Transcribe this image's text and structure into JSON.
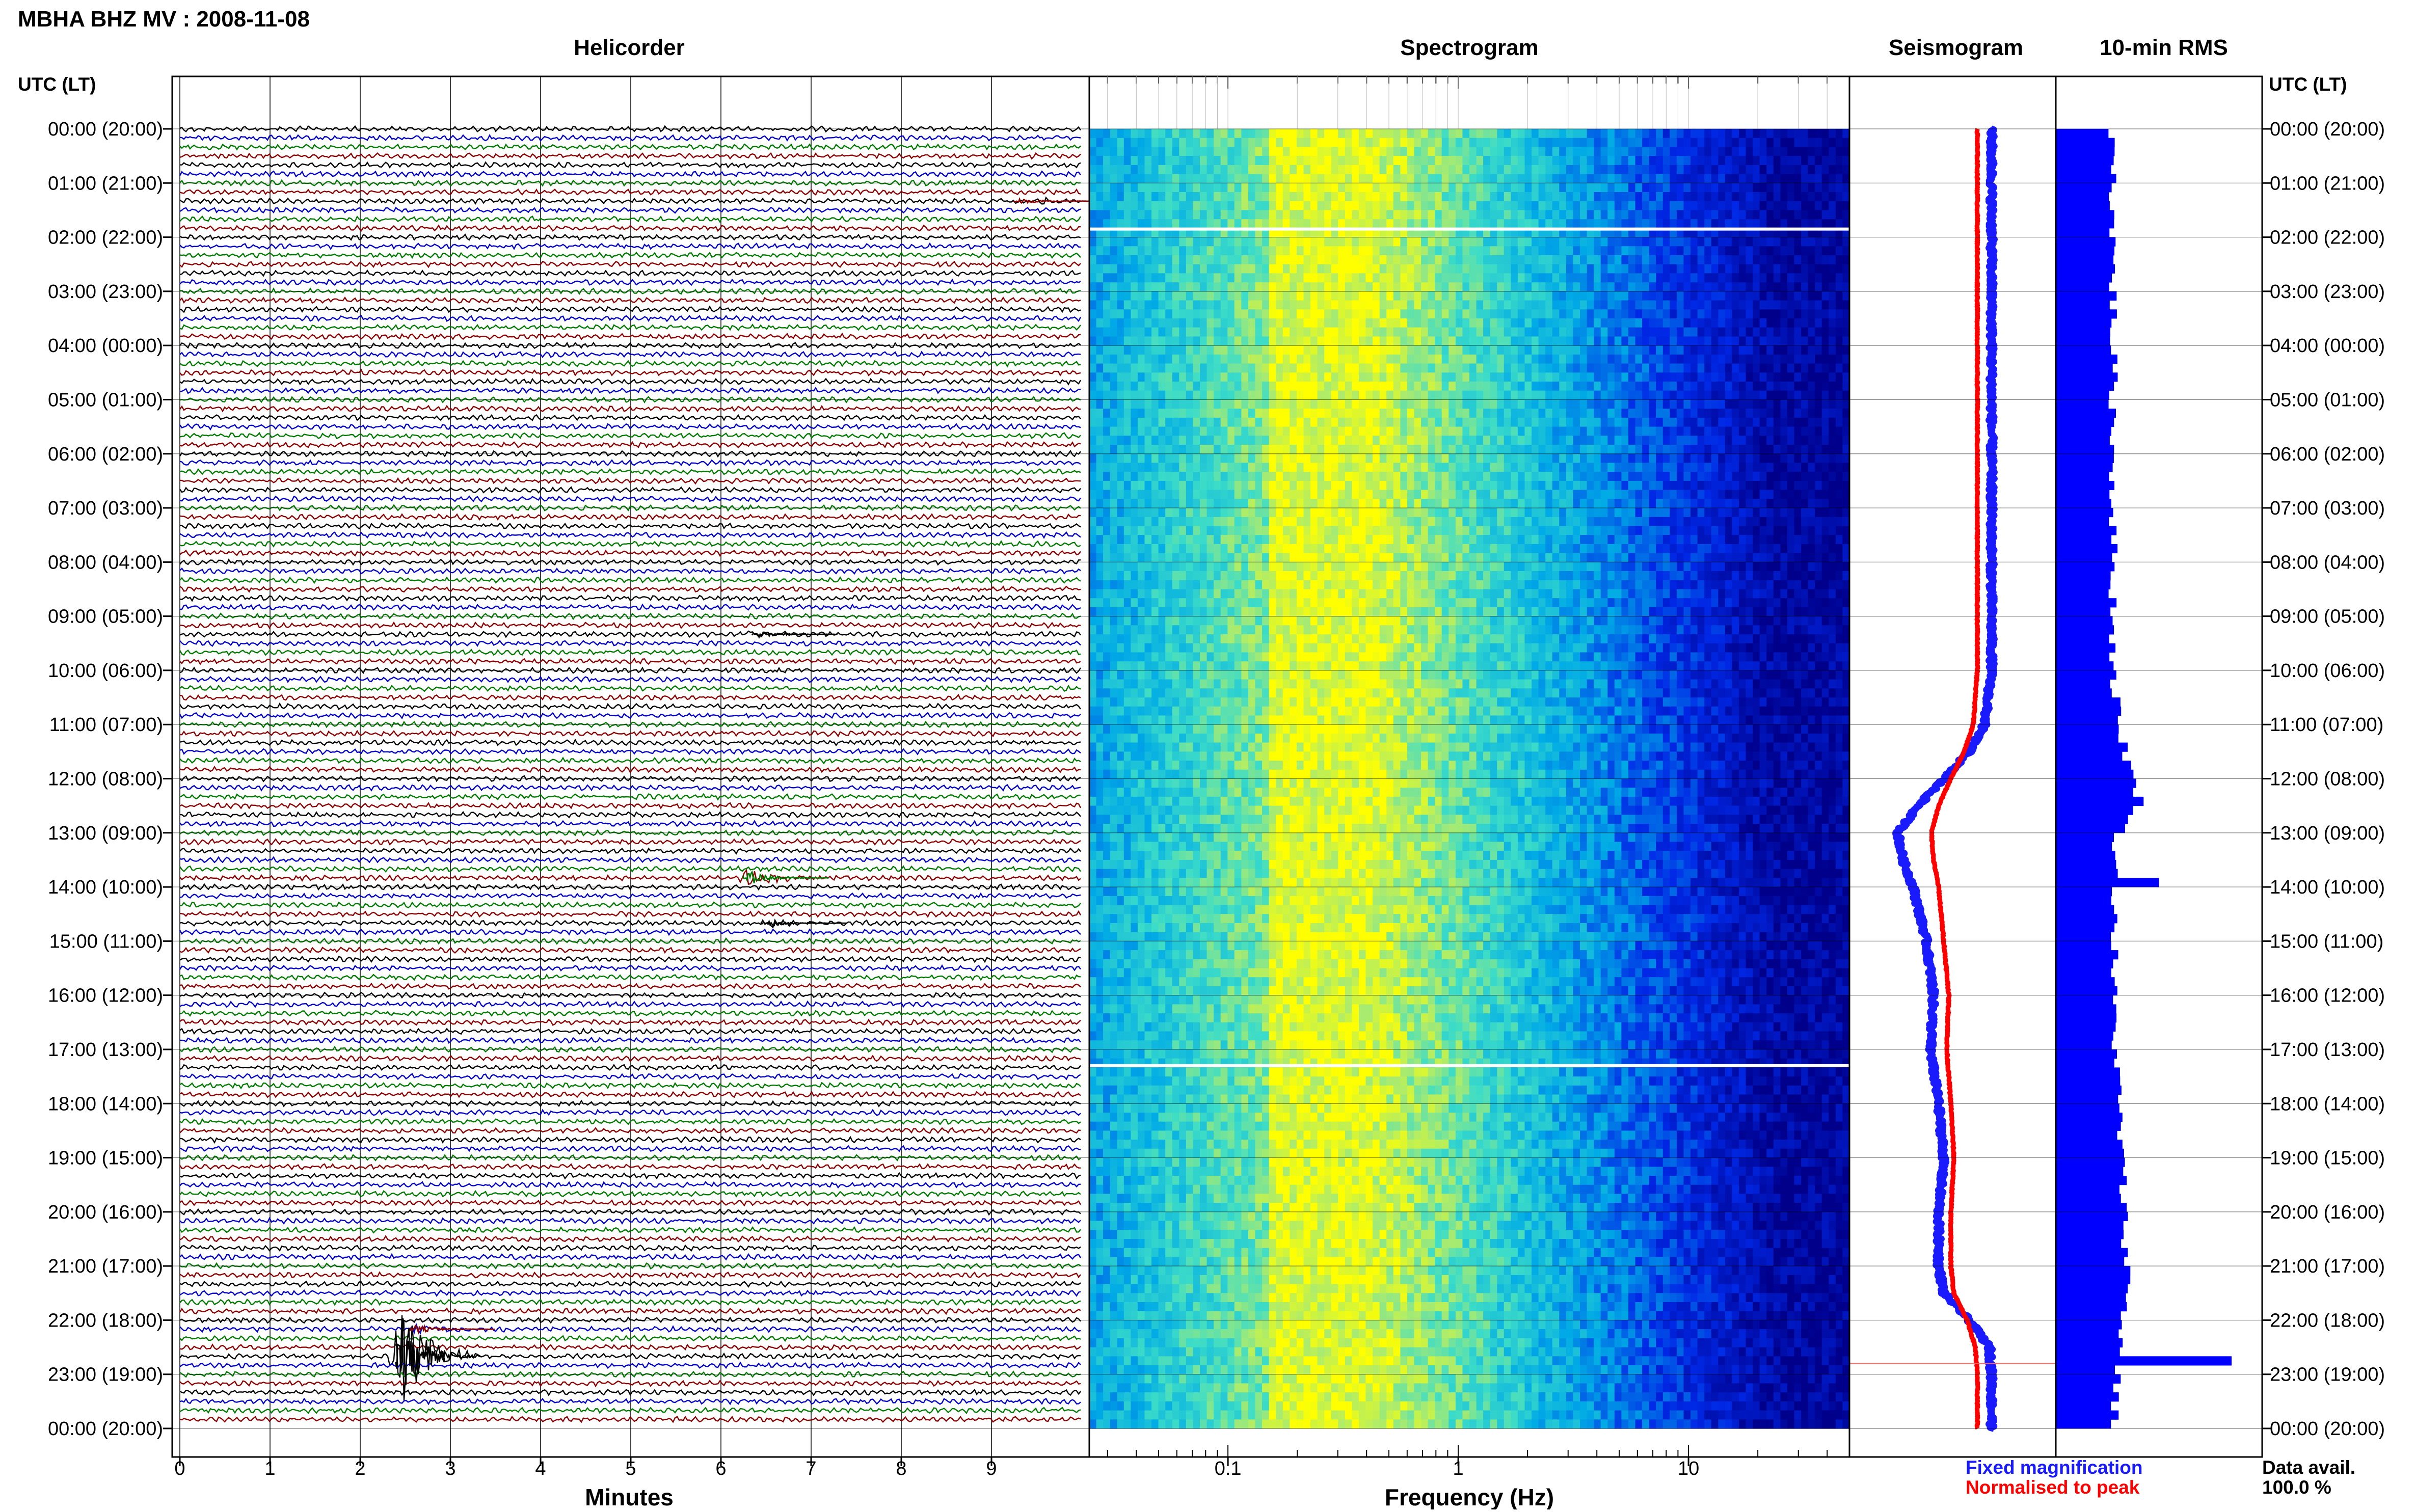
{
  "header": {
    "title": "MBHA BHZ MV : 2008-11-08",
    "left_axis_label": "UTC (LT)",
    "right_axis_label": "UTC (LT)"
  },
  "panels": {
    "helicorder": "Helicorder",
    "spectrogram": "Spectrogram",
    "seismogram": "Seismogram",
    "rms": "10-min RMS"
  },
  "axes": {
    "minutes_label": "Minutes",
    "frequency_label": "Frequency (Hz)"
  },
  "legend": {
    "fixed": "Fixed magnification",
    "normalised": "Normalised to peak",
    "fixed_color": "#1a1aff",
    "normalised_color": "#ff0000"
  },
  "availability": {
    "label": "Data avail.",
    "value": "100.0 %"
  },
  "colors": {
    "trace_cycle": [
      "#000000",
      "#0000c8",
      "#007a00",
      "#8b0000"
    ],
    "rms_bar": "#0000ff",
    "spectrogram_low": "#00008b",
    "spectrogram_high": "#ffff00"
  },
  "chart_data": [
    {
      "type": "line",
      "name": "helicorder",
      "x_label": "Minutes",
      "x_range": [
        0,
        10
      ],
      "x_ticks": [
        0,
        1,
        2,
        3,
        4,
        5,
        6,
        7,
        8,
        9
      ],
      "y_ticks": [
        "00:00 (20:00)",
        "01:00 (21:00)",
        "02:00 (22:00)",
        "03:00 (23:00)",
        "04:00 (00:00)",
        "05:00 (01:00)",
        "06:00 (02:00)",
        "07:00 (03:00)",
        "08:00 (04:00)",
        "09:00 (05:00)",
        "10:00 (06:00)",
        "11:00 (07:00)",
        "12:00 (08:00)",
        "13:00 (09:00)",
        "14:00 (10:00)",
        "15:00 (11:00)",
        "16:00 (12:00)",
        "17:00 (13:00)",
        "18:00 (14:00)",
        "19:00 (15:00)",
        "20:00 (16:00)",
        "21:00 (17:00)",
        "22:00 (18:00)",
        "23:00 (19:00)",
        "00:00 (20:00)"
      ],
      "rows": 144,
      "events": [
        {
          "hour": 1.25,
          "minute": 9.3,
          "color": "#8b0000",
          "amplitude": 0.5
        },
        {
          "hour": 9.3,
          "minute": 6.4,
          "color": "#000000",
          "amplitude": 0.6
        },
        {
          "hour": 13.8,
          "minute": 6.3,
          "color": "#007a00",
          "amplitude": 1.3
        },
        {
          "hour": 14.7,
          "minute": 6.5,
          "color": "#000000",
          "amplitude": 0.7
        },
        {
          "hour": 22.1,
          "minute": 2.6,
          "color": "#8b0000",
          "amplitude": 0.7
        },
        {
          "hour": 22.6,
          "minute": 2.45,
          "color": "#000000",
          "amplitude": 7.0
        }
      ]
    },
    {
      "type": "heatmap",
      "name": "spectrogram",
      "x_label": "Frequency (Hz)",
      "x_scale": "log",
      "x_range": [
        0.025,
        50
      ],
      "x_ticks": [
        0.1,
        1,
        10
      ],
      "gaps_hours": [
        1.85,
        17.3
      ],
      "peak_band_hz": [
        0.15,
        0.4
      ],
      "time_range_hours": [
        0,
        24
      ]
    },
    {
      "type": "line",
      "name": "seismogram",
      "time_range_hours": [
        0,
        24
      ],
      "series": [
        {
          "name": "Fixed magnification",
          "color": "#1a1aff",
          "hours": [
            0,
            2,
            4,
            6,
            8,
            10,
            11,
            11.5,
            12,
            12.5,
            13,
            13.5,
            14,
            15,
            16,
            17,
            18,
            19,
            20,
            21,
            21.5,
            22,
            22.5,
            23,
            24
          ],
          "values": [
            0.92,
            0.92,
            0.92,
            0.92,
            0.92,
            0.92,
            0.85,
            0.7,
            0.45,
            0.2,
            0.0,
            0.05,
            0.15,
            0.28,
            0.35,
            0.32,
            0.4,
            0.45,
            0.4,
            0.4,
            0.45,
            0.7,
            0.9,
            0.92,
            0.92
          ]
        },
        {
          "name": "Normalised to peak",
          "color": "#ff0000",
          "hours": [
            0,
            2,
            4,
            6,
            8,
            10,
            11,
            11.5,
            12,
            12.5,
            13,
            13.5,
            14,
            15,
            16,
            17,
            18,
            19,
            20,
            21,
            21.5,
            22,
            22.5,
            23,
            24
          ],
          "values": [
            0.78,
            0.78,
            0.78,
            0.78,
            0.78,
            0.78,
            0.74,
            0.65,
            0.52,
            0.4,
            0.33,
            0.35,
            0.4,
            0.45,
            0.5,
            0.48,
            0.52,
            0.55,
            0.52,
            0.52,
            0.55,
            0.68,
            0.76,
            0.78,
            0.78
          ]
        }
      ]
    },
    {
      "type": "bar",
      "name": "10-min RMS",
      "orientation": "horizontal",
      "bins": 144,
      "baseline_hour_profile": [
        {
          "hour": 0,
          "value": 0.3
        },
        {
          "hour": 10,
          "value": 0.3
        },
        {
          "hour": 11,
          "value": 0.33
        },
        {
          "hour": 12,
          "value": 0.4
        },
        {
          "hour": 12.5,
          "value": 0.45
        },
        {
          "hour": 13,
          "value": 0.32
        },
        {
          "hour": 16,
          "value": 0.3
        },
        {
          "hour": 21.5,
          "value": 0.38
        },
        {
          "hour": 22,
          "value": 0.35
        },
        {
          "hour": 24,
          "value": 0.3
        }
      ],
      "peaks": [
        {
          "hour": 13.9,
          "value": 0.54
        },
        {
          "hour": 22.8,
          "value": 0.92
        }
      ]
    }
  ]
}
